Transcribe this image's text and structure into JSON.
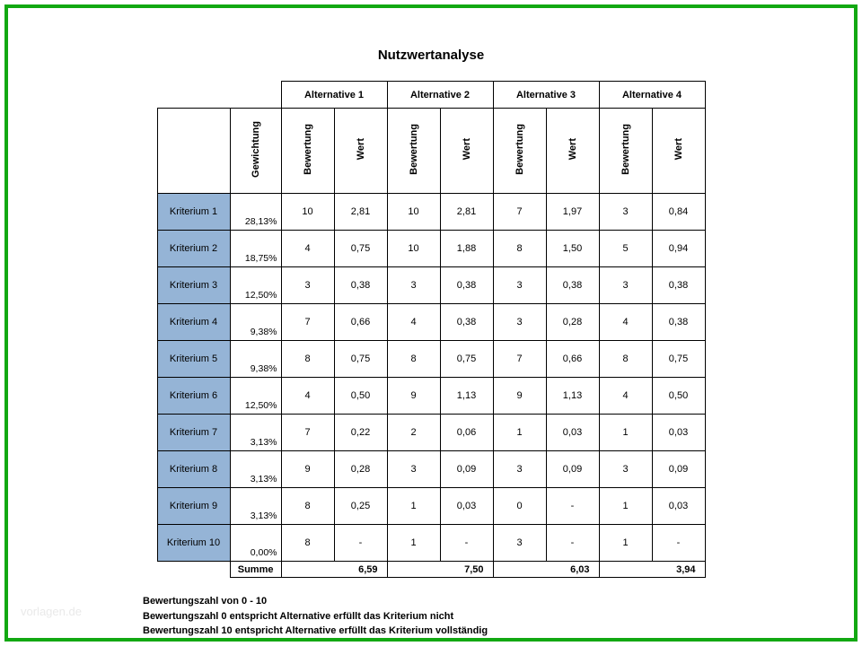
{
  "title": "Nutzwertanalyse",
  "columns": {
    "criterion": "",
    "weight": "Gewichtung",
    "alternatives": [
      {
        "name": "Alternative 1",
        "rating": "Bewertung",
        "value": "Wert"
      },
      {
        "name": "Alternative 2",
        "rating": "Bewertung",
        "value": "Wert"
      },
      {
        "name": "Alternative 3",
        "rating": "Bewertung",
        "value": "Wert"
      },
      {
        "name": "Alternative 4",
        "rating": "Bewertung",
        "value": "Wert"
      }
    ]
  },
  "rows": [
    {
      "crit": "Kriterium 1",
      "gew": "28,13%",
      "cells": [
        "10",
        "2,81",
        "10",
        "2,81",
        "7",
        "1,97",
        "3",
        "0,84"
      ]
    },
    {
      "crit": "Kriterium 2",
      "gew": "18,75%",
      "cells": [
        "4",
        "0,75",
        "10",
        "1,88",
        "8",
        "1,50",
        "5",
        "0,94"
      ]
    },
    {
      "crit": "Kriterium 3",
      "gew": "12,50%",
      "cells": [
        "3",
        "0,38",
        "3",
        "0,38",
        "3",
        "0,38",
        "3",
        "0,38"
      ]
    },
    {
      "crit": "Kriterium 4",
      "gew": "9,38%",
      "cells": [
        "7",
        "0,66",
        "4",
        "0,38",
        "3",
        "0,28",
        "4",
        "0,38"
      ]
    },
    {
      "crit": "Kriterium 5",
      "gew": "9,38%",
      "cells": [
        "8",
        "0,75",
        "8",
        "0,75",
        "7",
        "0,66",
        "8",
        "0,75"
      ]
    },
    {
      "crit": "Kriterium 6",
      "gew": "12,50%",
      "cells": [
        "4",
        "0,50",
        "9",
        "1,13",
        "9",
        "1,13",
        "4",
        "0,50"
      ]
    },
    {
      "crit": "Kriterium 7",
      "gew": "3,13%",
      "cells": [
        "7",
        "0,22",
        "2",
        "0,06",
        "1",
        "0,03",
        "1",
        "0,03"
      ]
    },
    {
      "crit": "Kriterium 8",
      "gew": "3,13%",
      "cells": [
        "9",
        "0,28",
        "3",
        "0,09",
        "3",
        "0,09",
        "3",
        "0,09"
      ]
    },
    {
      "crit": "Kriterium 9",
      "gew": "3,13%",
      "cells": [
        "8",
        "0,25",
        "1",
        "0,03",
        "0",
        "-",
        "1",
        "0,03"
      ]
    },
    {
      "crit": "Kriterium 10",
      "gew": "0,00%",
      "cells": [
        "8",
        "-",
        "1",
        "-",
        "3",
        "-",
        "1",
        "-"
      ]
    }
  ],
  "sum": {
    "label": "Summe",
    "values": [
      "6,59",
      "7,50",
      "6,03",
      "3,94"
    ]
  },
  "footer": [
    "Bewertungszahl von 0 - 10",
    "Bewertungszahl 0 entspricht Alternative erfüllt das Kriterium nicht",
    "Bewertungszahl 10 entspricht Alternative erfüllt das Kriterium vollständig"
  ],
  "watermark": "vorlagen.de",
  "colors": {
    "border_frame": "#12a812",
    "criterion_bg": "#95b4d6",
    "cell_border": "#000000",
    "background": "#ffffff"
  },
  "font_sizes": {
    "title": 15,
    "body": 11,
    "weight": 10.5,
    "watermark": 13
  }
}
